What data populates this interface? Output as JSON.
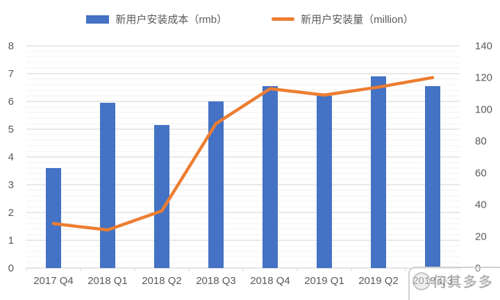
{
  "legend": {
    "cost_label": "新用户安装成本（rmb）",
    "volume_label": "新用户安装量（million）"
  },
  "watermark": {
    "text": "何其多多"
  },
  "colors": {
    "bar": "#4472C4",
    "line": "#ED7D31",
    "grid_major": "#D9D9D9",
    "grid_minor": "#F0F0F0",
    "axis_line": "#D9D9D9",
    "text": "#595959"
  },
  "chart_data": {
    "type": "bar",
    "subtype": "bar-line-combo",
    "title": "",
    "categories": [
      "2017 Q4",
      "2018 Q1",
      "2018 Q2",
      "2018 Q3",
      "2018 Q4",
      "2019 Q1",
      "2019 Q2",
      "2019 Q3"
    ],
    "series": [
      {
        "name": "新用户安装成本（rmb）",
        "type": "bar",
        "axis": "left",
        "color": "#4472C4",
        "values": [
          3.6,
          5.95,
          5.15,
          6.0,
          6.55,
          6.2,
          6.9,
          6.55
        ]
      },
      {
        "name": "新用户安装量（million）",
        "type": "line",
        "axis": "right",
        "color": "#ED7D31",
        "values": [
          28,
          24,
          36,
          91,
          113,
          109,
          114,
          120
        ]
      }
    ],
    "left_axis": {
      "min": 0,
      "max": 8,
      "major_step": 1,
      "minor_step": 0.2,
      "tick_labels": [
        "0",
        "1",
        "2",
        "3",
        "4",
        "5",
        "6",
        "7",
        "8"
      ]
    },
    "right_axis": {
      "min": 0,
      "max": 140,
      "major_step": 20,
      "tick_labels": [
        "0",
        "20",
        "40",
        "60",
        "80",
        "100",
        "120",
        "140"
      ]
    },
    "grid": "major-and-minor-horizontal",
    "legend_position": "top"
  }
}
